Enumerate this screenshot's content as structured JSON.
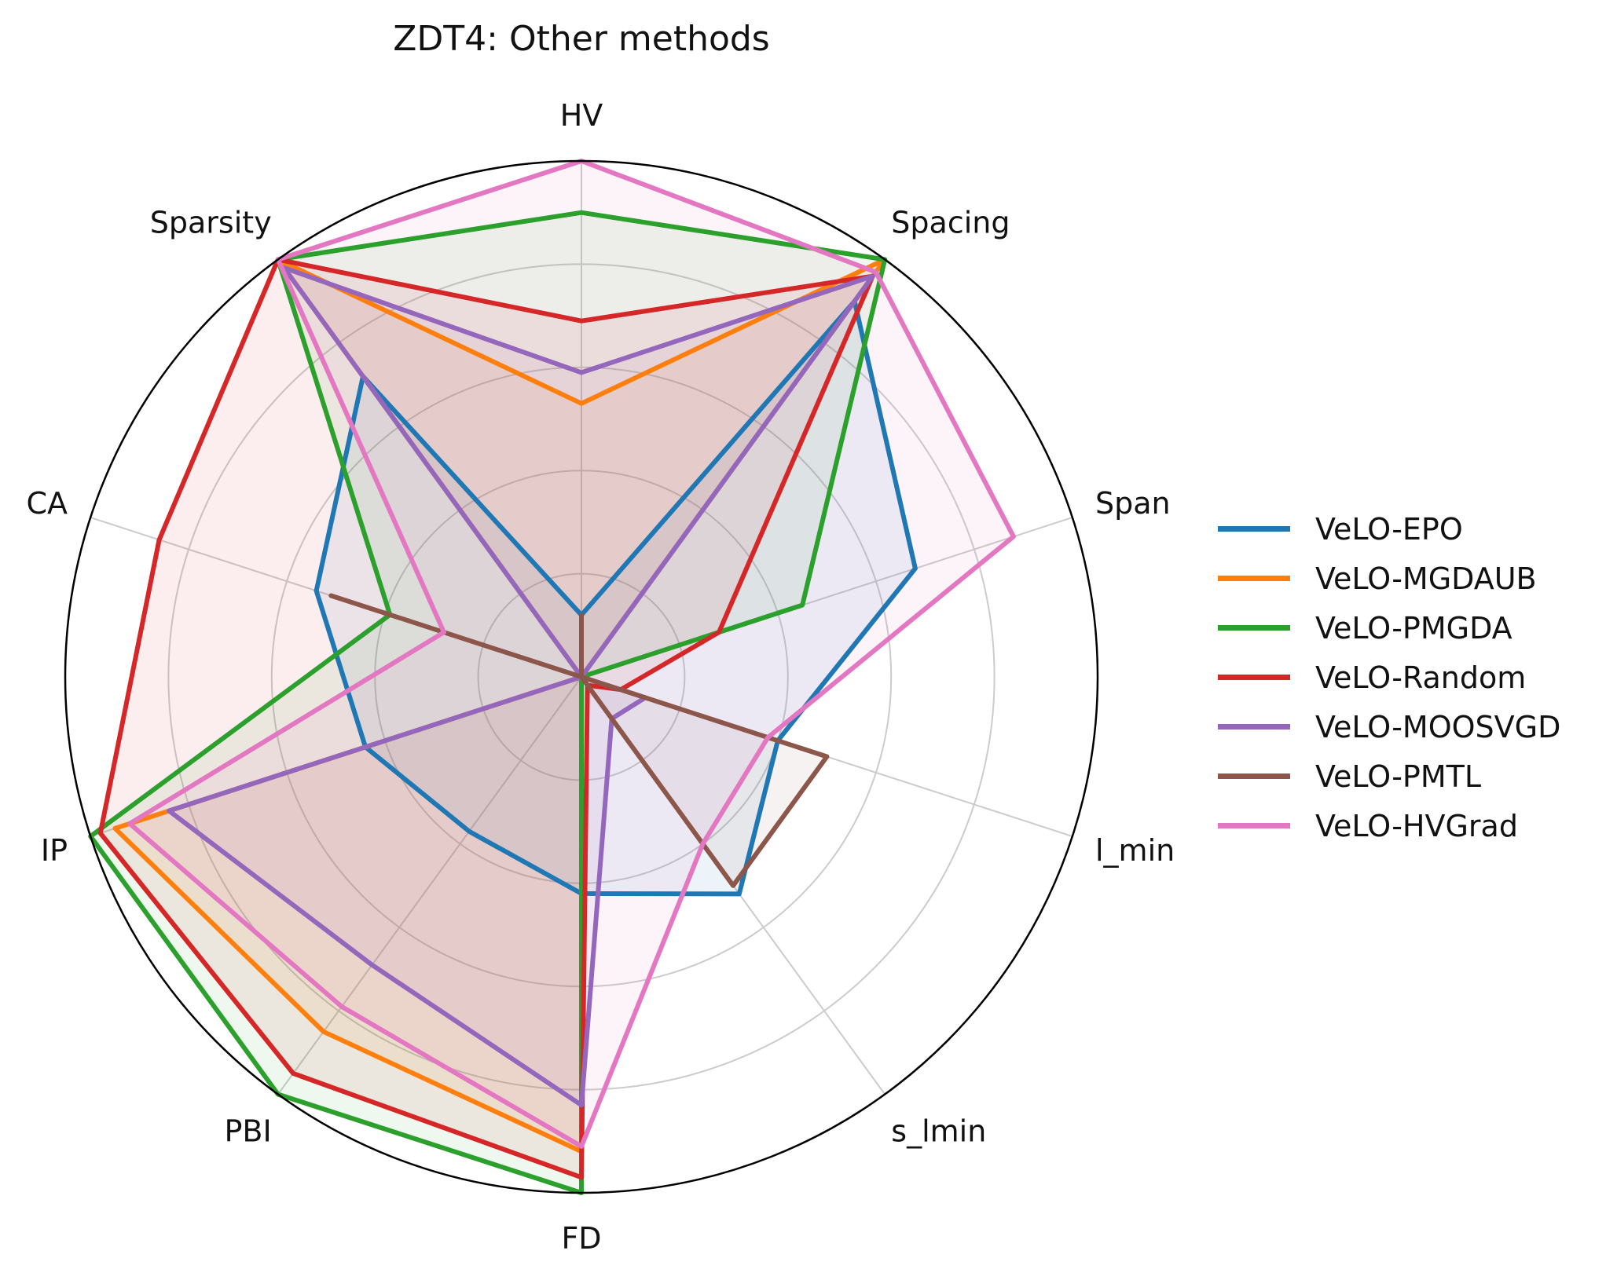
{
  "chart_data": {
    "type": "radar",
    "title": "ZDT4: Other methods",
    "axes": [
      "HV",
      "Spacing",
      "Span",
      "l_min",
      "s_lmin",
      "FD",
      "PBI",
      "IP",
      "CA",
      "Sparsity"
    ],
    "rlim": [
      0,
      1
    ],
    "grid": true,
    "legend_position": "right",
    "series": [
      {
        "name": "VeLO-EPO",
        "color": "#1f77b4",
        "values": [
          0.12,
          0.9,
          0.68,
          0.4,
          0.52,
          0.42,
          0.37,
          0.44,
          0.54,
          0.72
        ]
      },
      {
        "name": "VeLO-MGDAUB",
        "color": "#ff7f0e",
        "values": [
          0.53,
          1.0,
          0.0,
          0.0,
          0.0,
          0.92,
          0.85,
          0.95,
          0.0,
          1.0
        ]
      },
      {
        "name": "VeLO-PMGDA",
        "color": "#2ca02c",
        "values": [
          0.9,
          1.0,
          0.45,
          0.0,
          0.0,
          1.0,
          1.0,
          1.0,
          0.39,
          1.0
        ]
      },
      {
        "name": "VeLO-Random",
        "color": "#d62728",
        "values": [
          0.69,
          0.96,
          0.28,
          0.08,
          0.02,
          0.97,
          0.95,
          0.98,
          0.86,
          1.0
        ]
      },
      {
        "name": "VeLO-MOOSVGD",
        "color": "#9467bd",
        "values": [
          0.59,
          0.96,
          0.0,
          0.13,
          0.1,
          0.83,
          0.69,
          0.84,
          0.0,
          0.98
        ]
      },
      {
        "name": "VeLO-PMTL",
        "color": "#8c564b",
        "values": [
          0.12,
          0.0,
          0.0,
          0.5,
          0.5,
          0.0,
          0.0,
          0.0,
          0.51,
          0.0
        ]
      },
      {
        "name": "VeLO-HVGrad",
        "color": "#e377c2",
        "values": [
          1.0,
          0.97,
          0.88,
          0.38,
          0.4,
          0.91,
          0.79,
          0.92,
          0.28,
          1.0
        ]
      }
    ]
  }
}
